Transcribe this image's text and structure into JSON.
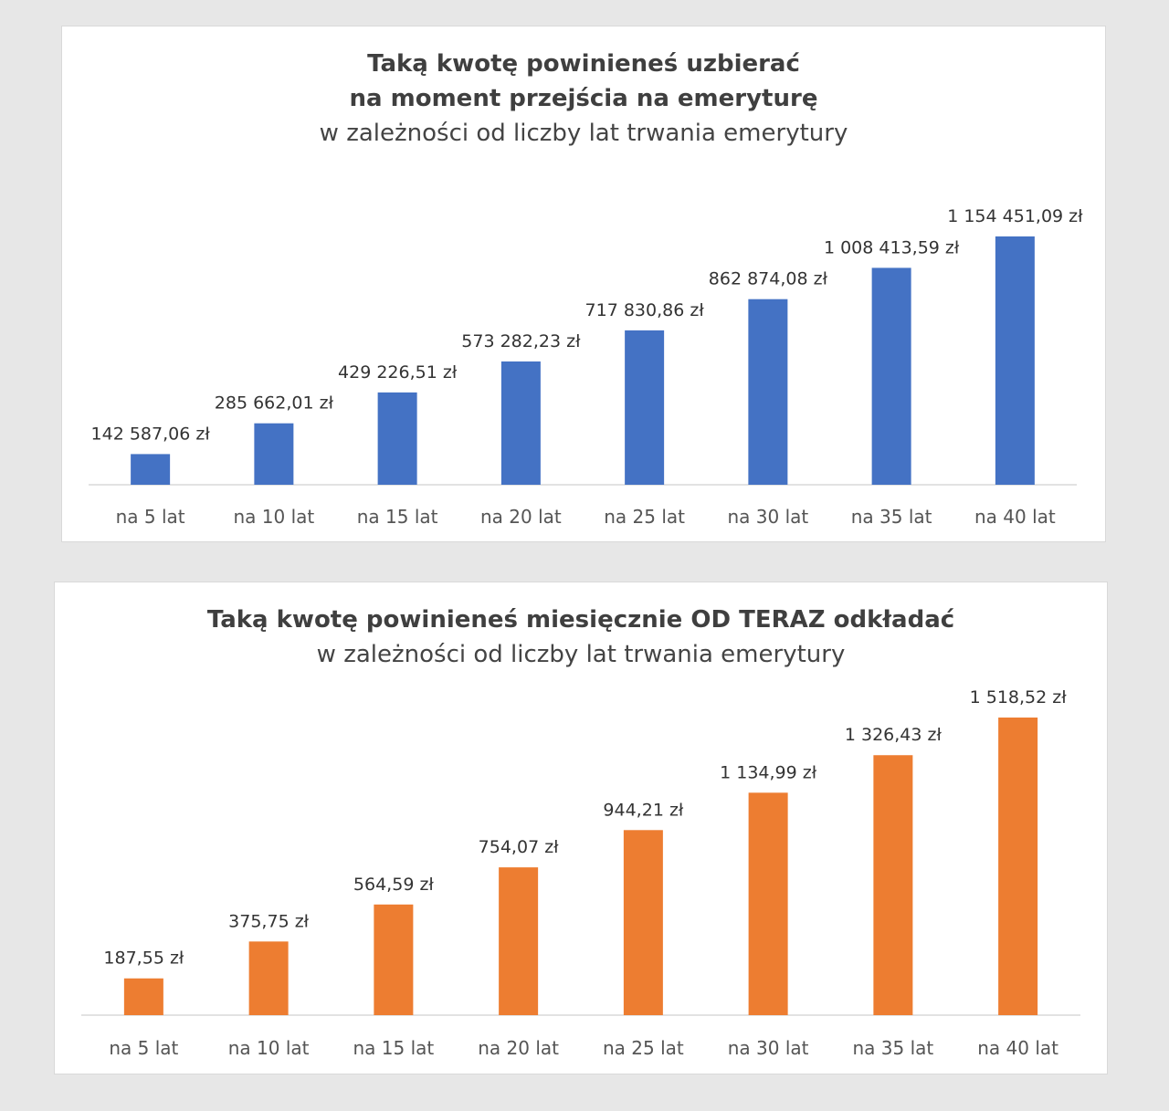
{
  "chart_data": [
    {
      "type": "bar",
      "title_line1": "Taką kwotę powinieneś uzbierać",
      "title_line2": "na moment przejścia na emeryturę",
      "subtitle": "w zależności od liczby lat trwania emerytury",
      "color": "#4472c4",
      "categories": [
        "na 5 lat",
        "na 10 lat",
        "na 15 lat",
        "na 20 lat",
        "na 25 lat",
        "na 30 lat",
        "na 35 lat",
        "na 40 lat"
      ],
      "values": [
        142587.06,
        285662.01,
        429226.51,
        573282.23,
        717830.86,
        862874.08,
        1008413.59,
        1154451.09
      ],
      "value_labels": [
        "142 587,06 zł",
        "285 662,01 zł",
        "429 226,51 zł",
        "573 282,23 zł",
        "717 830,86 zł",
        "862 874,08 zł",
        "1 008 413,59 zł",
        "1 154 451,09 zł"
      ],
      "xlabel": "",
      "ylabel": ""
    },
    {
      "type": "bar",
      "title_line1": "Taką kwotę powinieneś miesięcznie OD TERAZ odkładać",
      "subtitle": "w zależności od liczby lat trwania emerytury",
      "color": "#ed7d31",
      "categories": [
        "na 5 lat",
        "na 10 lat",
        "na 15 lat",
        "na 20 lat",
        "na 25 lat",
        "na 30 lat",
        "na 35 lat",
        "na 40 lat"
      ],
      "values": [
        187.55,
        375.75,
        564.59,
        754.07,
        944.21,
        1134.99,
        1326.43,
        1518.52
      ],
      "value_labels": [
        "187,55 zł",
        "375,75 zł",
        "564,59 zł",
        "754,07 zł",
        "944,21 zł",
        "1 134,99 zł",
        "1 326,43 zł",
        "1 518,52 zł"
      ],
      "xlabel": "",
      "ylabel": ""
    }
  ]
}
